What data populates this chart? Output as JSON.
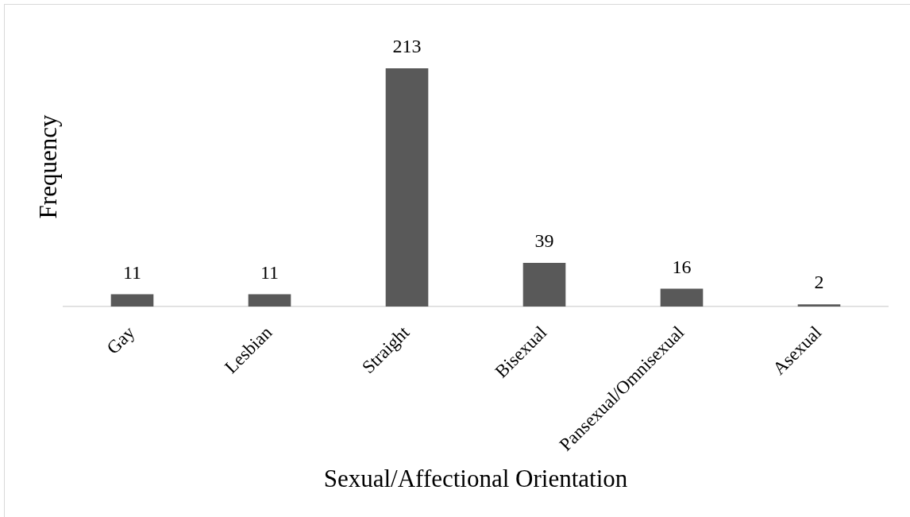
{
  "chart_data": {
    "type": "bar",
    "xlabel": "Sexual/Affectional Orientation",
    "ylabel": "Frequency",
    "categories": [
      "Gay",
      "Lesbian",
      "Straight",
      "Bisexual",
      "Pansexual/Omnisexual",
      "Asexual"
    ],
    "values": [
      11,
      11,
      213,
      39,
      16,
      2
    ],
    "color": "#595959",
    "data_labels": true,
    "tick_labels": "x"
  }
}
